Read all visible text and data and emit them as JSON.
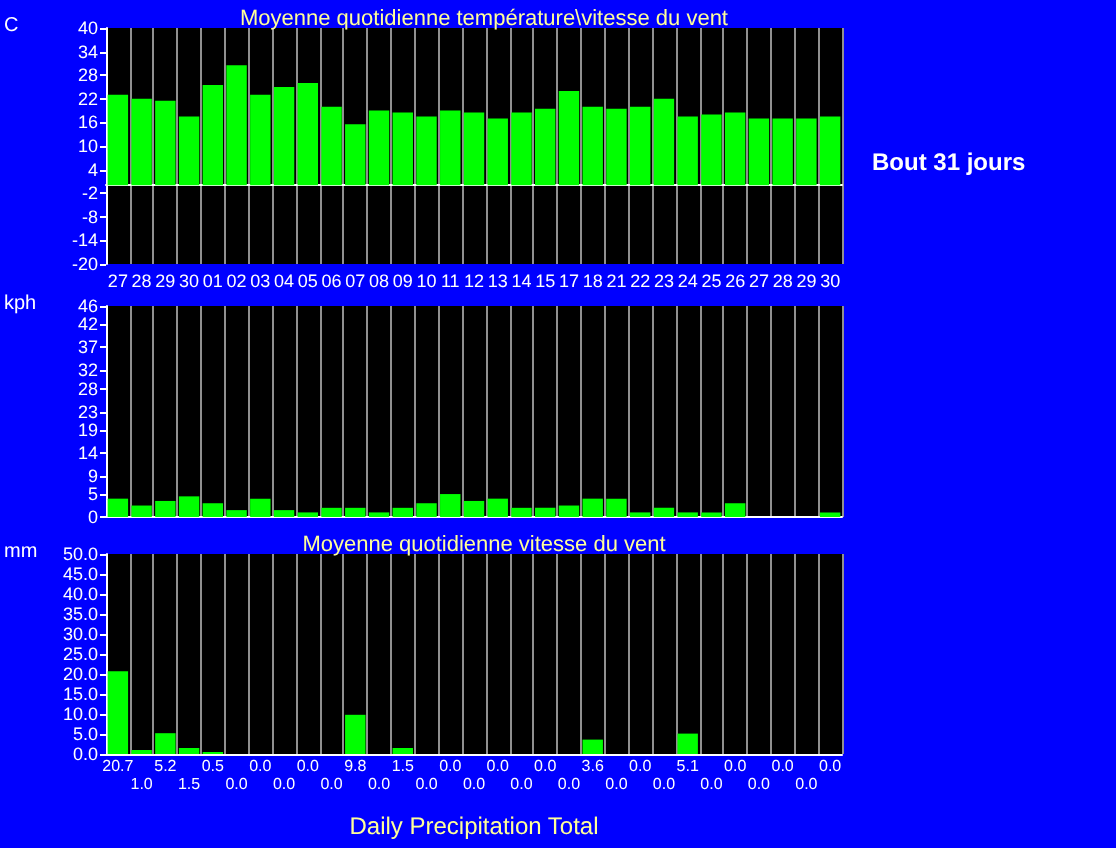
{
  "chart_data": [
    {
      "type": "bar",
      "title": "Moyenne quotidienne température\\vitesse du vent",
      "ylabel": "C",
      "annotations": [
        "Bout 31 jours"
      ],
      "categories": [
        "27",
        "28",
        "29",
        "30",
        "01",
        "02",
        "03",
        "04",
        "05",
        "06",
        "07",
        "08",
        "09",
        "10",
        "11",
        "12",
        "13",
        "14",
        "15",
        "17",
        "18",
        "21",
        "22",
        "23",
        "24",
        "25",
        "26",
        "27",
        "28",
        "29",
        "30"
      ],
      "values": [
        23,
        22,
        21.5,
        17.5,
        25.5,
        30.5,
        23,
        25,
        26,
        20,
        15.5,
        19,
        18.5,
        17.5,
        19,
        18.5,
        17,
        18.5,
        19.5,
        24,
        20,
        19.5,
        20,
        22,
        17.5,
        18,
        18.5,
        17,
        17,
        17,
        17.5
      ],
      "color": "#00ff00",
      "ylim": [
        -20,
        40
      ],
      "yticks": [
        -20,
        -14,
        -8,
        -2,
        4,
        10,
        16,
        22,
        28,
        34,
        40
      ],
      "grid": "x"
    },
    {
      "type": "bar",
      "ylabel": "kph",
      "tick_labels": "y",
      "categories": [
        "27",
        "28",
        "29",
        "30",
        "01",
        "02",
        "03",
        "04",
        "05",
        "06",
        "07",
        "08",
        "09",
        "10",
        "11",
        "12",
        "13",
        "14",
        "15",
        "17",
        "18",
        "21",
        "22",
        "23",
        "24",
        "25",
        "26",
        "27",
        "28",
        "29",
        "30"
      ],
      "values": [
        4,
        2.5,
        3.5,
        4.5,
        3,
        1.5,
        4,
        1.5,
        1,
        2,
        2,
        1,
        2,
        3,
        5,
        3.5,
        4,
        2,
        2,
        2.5,
        4,
        4,
        1,
        2,
        1,
        1,
        3,
        0,
        0,
        0,
        1
      ],
      "color": "#00ff00",
      "ylim": [
        0,
        46
      ],
      "yticks": [
        0,
        5,
        9,
        14,
        19,
        23,
        28,
        32,
        37,
        42,
        46
      ],
      "grid": "x"
    },
    {
      "type": "bar",
      "title": "Moyenne quotidienne vitesse du vent",
      "xlabel": "Daily Precipitation Total",
      "ylabel": "mm",
      "tick_labels": "y",
      "categories": [
        "27",
        "28",
        "29",
        "30",
        "01",
        "02",
        "03",
        "04",
        "05",
        "06",
        "07",
        "08",
        "09",
        "10",
        "11",
        "12",
        "13",
        "14",
        "15",
        "17",
        "18",
        "21",
        "22",
        "23",
        "24",
        "25",
        "26",
        "27",
        "28",
        "29",
        "30"
      ],
      "values": [
        20.7,
        1.0,
        5.2,
        1.5,
        0.5,
        0,
        0,
        0,
        0,
        0,
        9.8,
        0,
        1.5,
        0,
        0,
        0,
        0,
        0,
        0,
        0,
        3.6,
        0,
        0,
        0,
        5.1,
        0,
        0,
        0,
        0,
        0,
        0
      ],
      "value_labels": [
        "20.7",
        "1.0",
        "5.2",
        "1.5",
        "0.5",
        "0.0",
        "0.0",
        "0.0",
        "0.0",
        "0.0",
        "9.8",
        "0.0",
        "1.5",
        "0.0",
        "0.0",
        "0.0",
        "0.0",
        "0.0",
        "0.0",
        "0.0",
        "3.6",
        "0.0",
        "0.0",
        "0.0",
        "5.1",
        "0.0",
        "0.0",
        "0.0",
        "0.0",
        "0.0",
        "0.0"
      ],
      "color": "#00ff00",
      "ylim": [
        0,
        50
      ],
      "yticks": [
        {
          "value": 0,
          "label": "0.0"
        },
        {
          "value": 5,
          "label": "5.0"
        },
        {
          "value": 10,
          "label": "10.0"
        },
        {
          "value": 15,
          "label": "15.0"
        },
        {
          "value": 20,
          "label": "20.0"
        },
        {
          "value": 25,
          "label": "25.0"
        },
        {
          "value": 30,
          "label": "30.0"
        },
        {
          "value": 35,
          "label": "35.0"
        },
        {
          "value": 40,
          "label": "40.0"
        },
        {
          "value": 45,
          "label": "45.0"
        },
        {
          "value": 50,
          "label": "50.0"
        }
      ],
      "grid": "x"
    }
  ]
}
